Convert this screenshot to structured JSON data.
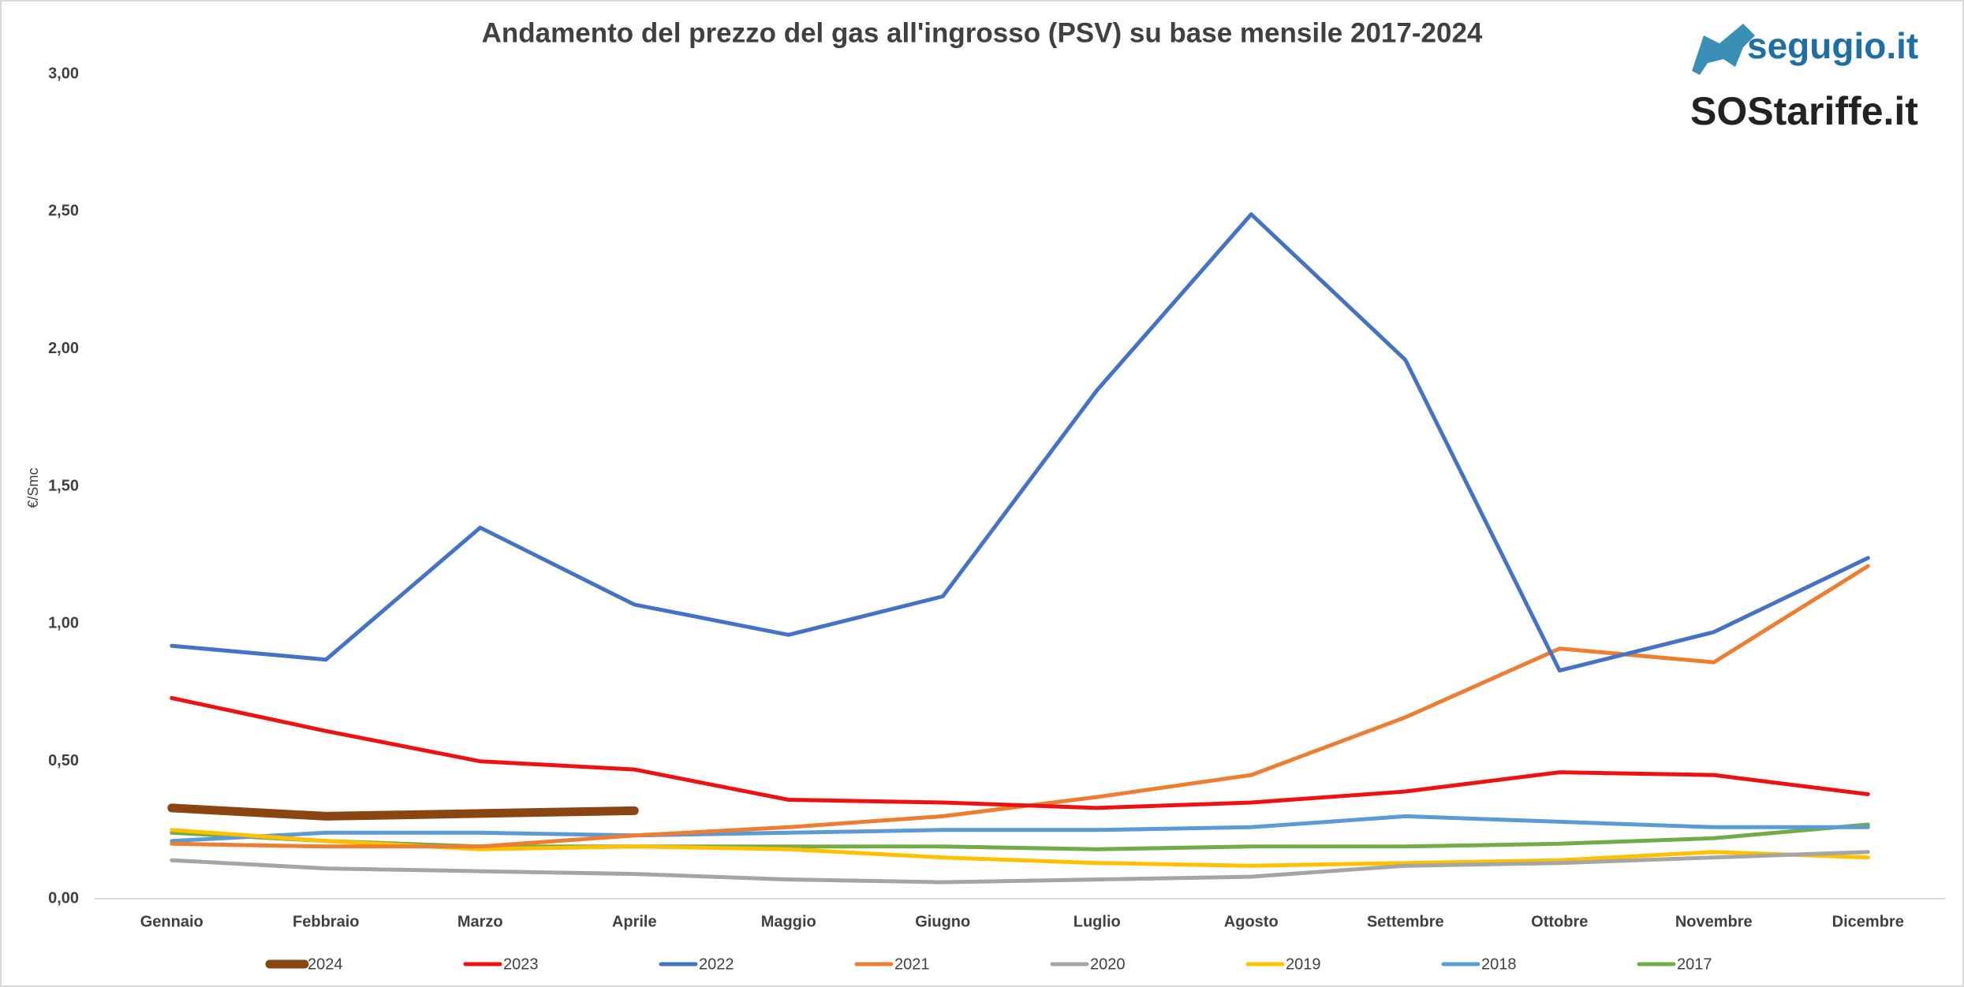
{
  "logos": [
    "segugio.it",
    "SOStariffe.it"
  ],
  "chart_data": {
    "type": "line",
    "title": "Andamento del prezzo del gas all'ingrosso (PSV) su base mensile 2017-2024",
    "y_label": "€/Smc",
    "categories": [
      "Gennaio",
      "Febbraio",
      "Marzo",
      "Aprile",
      "Maggio",
      "Giugno",
      "Luglio",
      "Agosto",
      "Settembre",
      "Ottobre",
      "Novembre",
      "Dicembre"
    ],
    "series": [
      {
        "name": "2024",
        "color": "#8b4513",
        "linewidth": 11,
        "values": [
          0.33,
          0.3,
          0.31,
          0.32,
          null,
          null,
          null,
          null,
          null,
          null,
          null,
          null
        ]
      },
      {
        "name": "2023",
        "color": "#ee1111",
        "linewidth": 5,
        "values": [
          0.73,
          0.61,
          0.5,
          0.47,
          0.36,
          0.35,
          0.33,
          0.35,
          0.39,
          0.46,
          0.45,
          0.38
        ]
      },
      {
        "name": "2022",
        "color": "#4472c4",
        "linewidth": 5,
        "values": [
          0.92,
          0.87,
          1.35,
          1.07,
          0.96,
          1.1,
          1.85,
          2.49,
          1.96,
          0.83,
          0.97,
          1.24
        ]
      },
      {
        "name": "2021",
        "color": "#ed7d31",
        "linewidth": 5,
        "values": [
          0.2,
          0.19,
          0.19,
          0.23,
          0.26,
          0.3,
          0.37,
          0.45,
          0.66,
          0.91,
          0.86,
          1.21
        ]
      },
      {
        "name": "2020",
        "color": "#a5a5a5",
        "linewidth": 5,
        "values": [
          0.14,
          0.11,
          0.1,
          0.09,
          0.07,
          0.06,
          0.07,
          0.08,
          0.12,
          0.13,
          0.15,
          0.17
        ]
      },
      {
        "name": "2019",
        "color": "#ffc000",
        "linewidth": 5,
        "values": [
          0.25,
          0.21,
          0.18,
          0.19,
          0.18,
          0.15,
          0.13,
          0.12,
          0.13,
          0.14,
          0.17,
          0.15
        ]
      },
      {
        "name": "2018",
        "color": "#5b9bd5",
        "linewidth": 5,
        "values": [
          0.21,
          0.24,
          0.24,
          0.23,
          0.24,
          0.25,
          0.25,
          0.26,
          0.3,
          0.28,
          0.26,
          0.26
        ]
      },
      {
        "name": "2017",
        "color": "#70ad47",
        "linewidth": 5,
        "values": [
          0.24,
          0.21,
          0.19,
          0.19,
          0.19,
          0.19,
          0.18,
          0.19,
          0.19,
          0.2,
          0.22,
          0.27
        ]
      }
    ],
    "ylim": [
      0,
      3
    ],
    "yticks": [
      {
        "value": 0,
        "label": "0,00"
      },
      {
        "value": 0.5,
        "label": "0,50"
      },
      {
        "value": 1,
        "label": "1,00"
      },
      {
        "value": 1.5,
        "label": "1,50"
      },
      {
        "value": 2,
        "label": "2,00"
      },
      {
        "value": 2.5,
        "label": "2,50"
      },
      {
        "value": 3,
        "label": "3,00"
      }
    ],
    "grid": false,
    "legend": "bottom"
  }
}
